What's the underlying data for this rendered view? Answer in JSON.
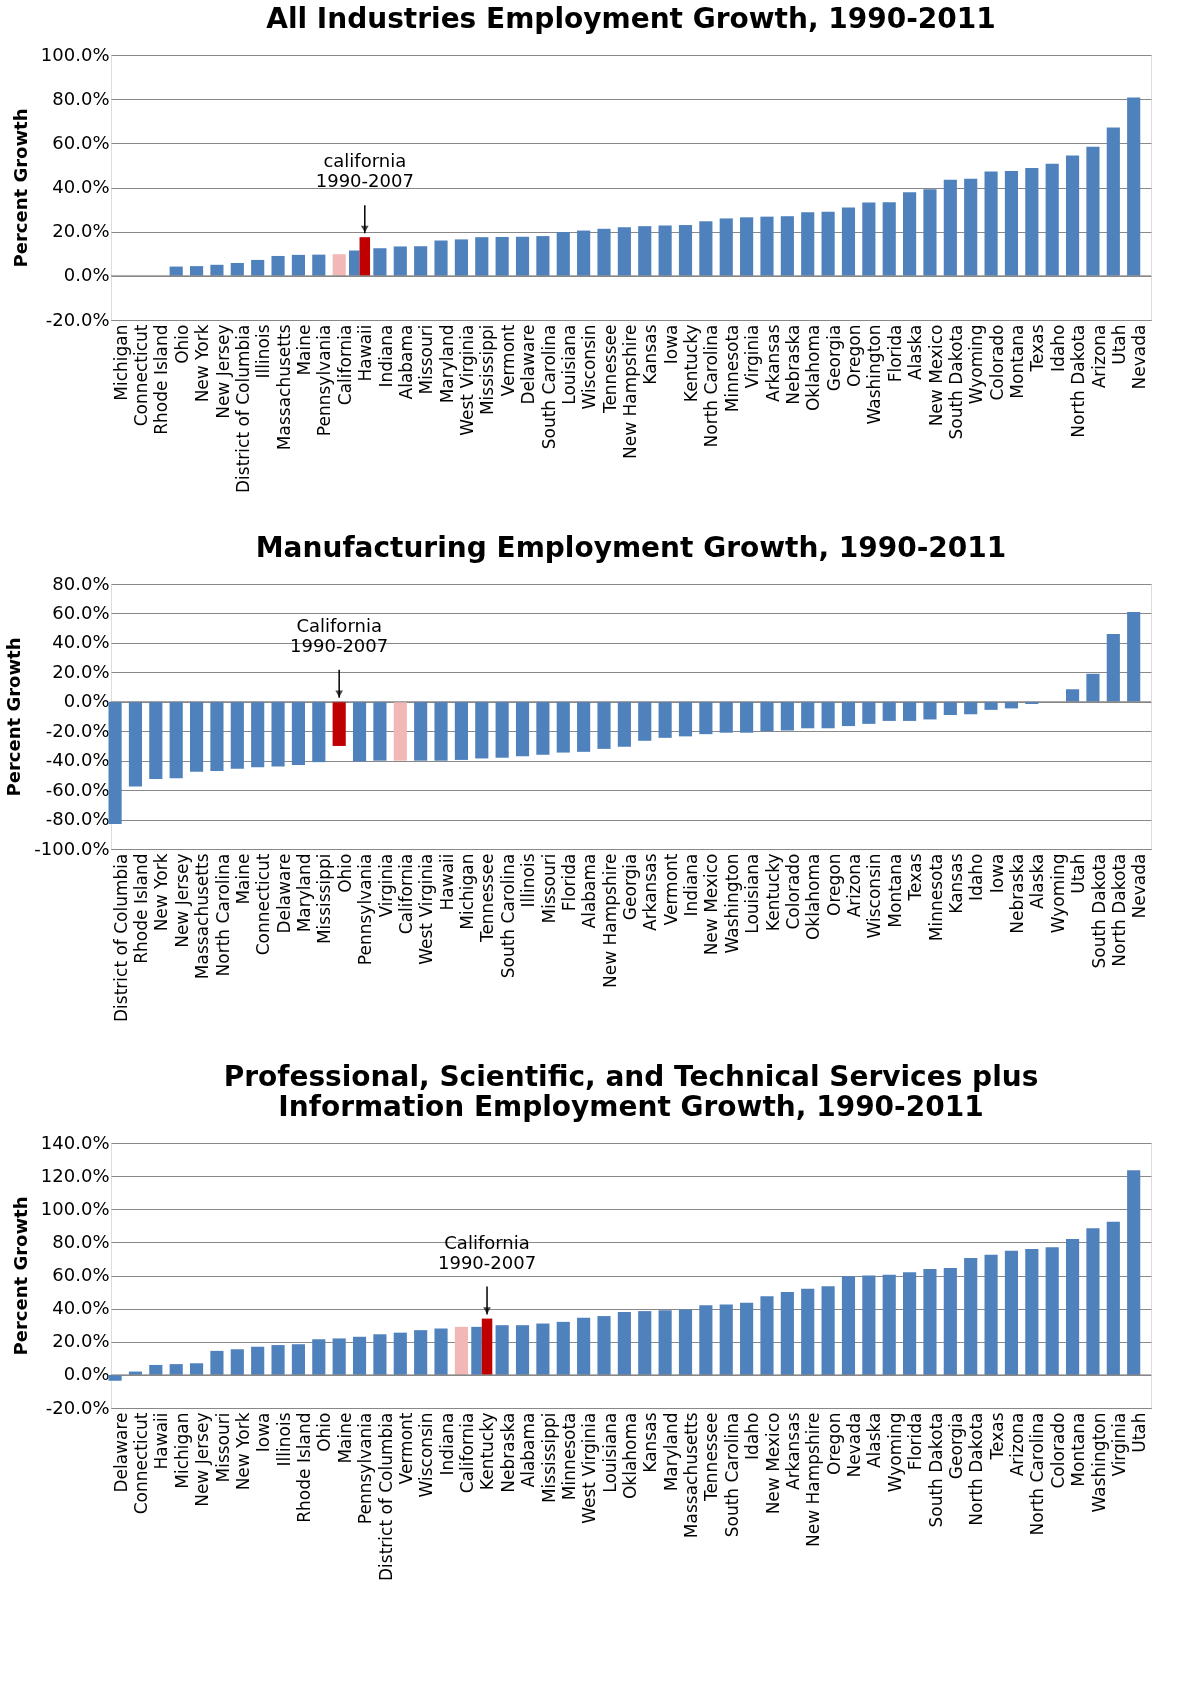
{
  "chart_data": [
    {
      "type": "bar",
      "title": "All Industries Employment Growth, 1990-2011",
      "ylabel": "Percent Growth",
      "categories": [
        "Michigan",
        "Connecticut",
        "Rhode Island",
        "Ohio",
        "New York",
        "New Jersey",
        "District of Columbia",
        "Illinois",
        "Massachusetts",
        "Maine",
        "Pennsylvania",
        "California",
        "Hawaii",
        "Indiana",
        "Alabama",
        "Missouri",
        "Maryland",
        "West Virginia",
        "Mississippi",
        "Vermont",
        "Delaware",
        "South Carolina",
        "Louisiana",
        "Wisconsin",
        "Tennessee",
        "New Hampshire",
        "Kansas",
        "Iowa",
        "Kentucky",
        "North Carolina",
        "Minnesota",
        "Virginia",
        "Arkansas",
        "Nebraska",
        "Oklahoma",
        "Georgia",
        "Oregon",
        "Washington",
        "Florida",
        "Alaska",
        "New Mexico",
        "South Dakota",
        "Wyoming",
        "Colorado",
        "Montana",
        "Texas",
        "Idaho",
        "North Dakota",
        "Arizona",
        "Utah",
        "Nevada"
      ],
      "series": [
        {
          "values": [
            0,
            0,
            0,
            4.2,
            4.4,
            5,
            5.8,
            7.2,
            9,
            9.5,
            9.6,
            9.8,
            11.5,
            12.5,
            13.3,
            13.4,
            16,
            16.5,
            17.5,
            17.6,
            17.7,
            18,
            19.8,
            20.5,
            21.3,
            22,
            22.5,
            22.8,
            23,
            24.7,
            26,
            26.5,
            26.8,
            27,
            28.8,
            29,
            31,
            33.2,
            33.3,
            37.8,
            39.2,
            43.5,
            44,
            47.2,
            47.5,
            48.8,
            50.8,
            54.5,
            58.5,
            67.2,
            80.8
          ],
          "colors": [
            "#4f81bd",
            "#4f81bd",
            "#4f81bd",
            "#4f81bd",
            "#4f81bd",
            "#4f81bd",
            "#4f81bd",
            "#4f81bd",
            "#4f81bd",
            "#4f81bd",
            "#4f81bd",
            "#f2b8b8",
            "#4f81bd",
            "#4f81bd",
            "#4f81bd",
            "#4f81bd",
            "#4f81bd",
            "#4f81bd",
            "#4f81bd",
            "#4f81bd",
            "#4f81bd",
            "#4f81bd",
            "#4f81bd",
            "#4f81bd",
            "#4f81bd",
            "#4f81bd",
            "#4f81bd",
            "#4f81bd",
            "#4f81bd",
            "#4f81bd",
            "#4f81bd",
            "#4f81bd",
            "#4f81bd",
            "#4f81bd",
            "#4f81bd",
            "#4f81bd",
            "#4f81bd",
            "#4f81bd",
            "#4f81bd",
            "#4f81bd",
            "#4f81bd",
            "#4f81bd",
            "#4f81bd",
            "#4f81bd",
            "#4f81bd",
            "#4f81bd",
            "#4f81bd",
            "#4f81bd",
            "#4f81bd",
            "#4f81bd",
            "#4f81bd"
          ]
        },
        {
          "color": "#c00000",
          "values": [
            null,
            null,
            null,
            null,
            null,
            null,
            null,
            null,
            null,
            null,
            null,
            null,
            17.5,
            null,
            null,
            null,
            null,
            null,
            null,
            null,
            null,
            null,
            null,
            null,
            null,
            null,
            null,
            null,
            null,
            null,
            null,
            null,
            null,
            null,
            null,
            null,
            null,
            null,
            null,
            null,
            null,
            null,
            null,
            null,
            null,
            null,
            null,
            null,
            null,
            null,
            null
          ]
        }
      ],
      "ylim": [
        -20,
        100
      ],
      "yticks": [
        {
          "value": -20,
          "label": "-20.0%"
        },
        {
          "value": 0,
          "label": "0.0%"
        },
        {
          "value": 20,
          "label": "20.0%"
        },
        {
          "value": 40,
          "label": "40.0%"
        },
        {
          "value": 60,
          "label": "60.0%"
        },
        {
          "value": 80,
          "label": "80.0%"
        },
        {
          "value": 100,
          "label": "100.0%"
        }
      ],
      "grid": "y",
      "annotations": [
        {
          "text": "california 1990-2007",
          "x": "Hawaii",
          "y": 17.5
        }
      ]
    },
    {
      "type": "bar",
      "title": "Manufacturing Employment Growth, 1990-2011",
      "ylabel": "Percent Growth",
      "categories": [
        "District of Columbia",
        "Rhode Island",
        "New York",
        "New Jersey",
        "Massachusetts",
        "North Carolina",
        "Maine",
        "Connecticut",
        "Delaware",
        "Maryland",
        "Mississippi",
        "Ohio",
        "Pennsylvania",
        "Virginia",
        "California",
        "West Virginia",
        "Hawaii",
        "Michigan",
        "Tennessee",
        "South Carolina",
        "Illinois",
        "Missouri",
        "Florida",
        "Alabama",
        "New Hampshire",
        "Georgia",
        "Arkansas",
        "Vermont",
        "Indiana",
        "New Mexico",
        "Washington",
        "Louisiana",
        "Kentucky",
        "Colorado",
        "Oklahoma",
        "Oregon",
        "Arizona",
        "Wisconsin",
        "Montana",
        "Texas",
        "Minnesota",
        "Kansas",
        "Idaho",
        "Iowa",
        "Nebraska",
        "Alaska",
        "Wyoming",
        "Utah",
        "South Dakota",
        "North Dakota",
        "Nevada"
      ],
      "series": [
        {
          "values": [
            -83,
            -57.5,
            -52.5,
            -52,
            -47.5,
            -47,
            -45.5,
            -44.5,
            -44,
            -43,
            -41,
            null,
            -40.5,
            -40,
            -40,
            -40,
            -40,
            -39.5,
            -38.5,
            -38,
            -37,
            -36,
            -34.5,
            -34,
            -32,
            -30.5,
            -26.5,
            -24.5,
            -23.5,
            -22,
            -21,
            -21,
            -20,
            -19.5,
            -18,
            -18,
            -16.5,
            -15,
            -13,
            -13,
            -12,
            -9,
            -8.5,
            -5.5,
            -4.5,
            -1.5,
            0,
            8.5,
            19,
            46,
            61
          ],
          "colors": [
            "#4f81bd",
            "#4f81bd",
            "#4f81bd",
            "#4f81bd",
            "#4f81bd",
            "#4f81bd",
            "#4f81bd",
            "#4f81bd",
            "#4f81bd",
            "#4f81bd",
            "#4f81bd",
            "#4f81bd",
            "#4f81bd",
            "#4f81bd",
            "#f2b8b8",
            "#4f81bd",
            "#4f81bd",
            "#4f81bd",
            "#4f81bd",
            "#4f81bd",
            "#4f81bd",
            "#4f81bd",
            "#4f81bd",
            "#4f81bd",
            "#4f81bd",
            "#4f81bd",
            "#4f81bd",
            "#4f81bd",
            "#4f81bd",
            "#4f81bd",
            "#4f81bd",
            "#4f81bd",
            "#4f81bd",
            "#4f81bd",
            "#4f81bd",
            "#4f81bd",
            "#4f81bd",
            "#4f81bd",
            "#4f81bd",
            "#4f81bd",
            "#4f81bd",
            "#4f81bd",
            "#4f81bd",
            "#4f81bd",
            "#4f81bd",
            "#4f81bd",
            "#4f81bd",
            "#4f81bd",
            "#4f81bd",
            "#4f81bd",
            "#4f81bd"
          ]
        },
        {
          "color": "#c00000",
          "values": [
            null,
            null,
            null,
            null,
            null,
            null,
            null,
            null,
            null,
            null,
            null,
            -30,
            null,
            null,
            null,
            null,
            null,
            null,
            null,
            null,
            null,
            null,
            null,
            null,
            null,
            null,
            null,
            null,
            null,
            null,
            null,
            null,
            null,
            null,
            null,
            null,
            null,
            null,
            null,
            null,
            null,
            null,
            null,
            null,
            null,
            null,
            null,
            null,
            null,
            null,
            null
          ]
        }
      ],
      "ylim": [
        -100,
        80
      ],
      "yticks": [
        {
          "value": -100,
          "label": "-100.0%"
        },
        {
          "value": -80,
          "label": "-80.0%"
        },
        {
          "value": -60,
          "label": "-60.0%"
        },
        {
          "value": -40,
          "label": "-40.0%"
        },
        {
          "value": -20,
          "label": "-20.0%"
        },
        {
          "value": 0,
          "label": "0.0%"
        },
        {
          "value": 20,
          "label": "20.0%"
        },
        {
          "value": 40,
          "label": "40.0%"
        },
        {
          "value": 60,
          "label": "60.0%"
        },
        {
          "value": 80,
          "label": "80.0%"
        }
      ],
      "grid": "y",
      "annotations": [
        {
          "text": "California 1990-2007",
          "x": "Ohio",
          "y": 0
        }
      ]
    },
    {
      "type": "bar",
      "title": "Professional, Scientific, and Technical Services plus Information Employment Growth, 1990-2011",
      "ylabel": "Percent Growth",
      "categories": [
        "Delaware",
        "Connecticut",
        "Hawaii",
        "Michigan",
        "New Jersey",
        "Missouri",
        "New York",
        "Iowa",
        "Illinois",
        "Rhode Island",
        "Ohio",
        "Maine",
        "Pennsylvania",
        "District of Columbia",
        "Vermont",
        "Wisconsin",
        "Indiana",
        "California",
        "Kentucky",
        "Nebraska",
        "Alabama",
        "Mississippi",
        "Minnesota",
        "West Virginia",
        "Louisiana",
        "Oklahoma",
        "Kansas",
        "Maryland",
        "Massachusetts",
        "Tennessee",
        "South Carolina",
        "Idaho",
        "New Mexico",
        "Arkansas",
        "New Hampshire",
        "Oregon",
        "Nevada",
        "Alaska",
        "Wyoming",
        "Florida",
        "South Dakota",
        "Georgia",
        "North Dakota",
        "Texas",
        "Arizona",
        "North Carolina",
        "Colorado",
        "Montana",
        "Washington",
        "Virginia",
        "Utah"
      ],
      "series": [
        {
          "values": [
            -3.5,
            2,
            6,
            6.5,
            7,
            14.5,
            15.5,
            17,
            18,
            18.5,
            21.5,
            22,
            23,
            24.5,
            25.5,
            27,
            28,
            29,
            29,
            30,
            30,
            31,
            32,
            34.5,
            35.5,
            38,
            38.5,
            39,
            39.5,
            42,
            42.5,
            43.5,
            47.5,
            50,
            52,
            53.5,
            59.5,
            60,
            60.5,
            62,
            64,
            64.5,
            70.5,
            72.5,
            75,
            76,
            77,
            82,
            88.5,
            92.5,
            123.5
          ],
          "colors": [
            "#4f81bd",
            "#4f81bd",
            "#4f81bd",
            "#4f81bd",
            "#4f81bd",
            "#4f81bd",
            "#4f81bd",
            "#4f81bd",
            "#4f81bd",
            "#4f81bd",
            "#4f81bd",
            "#4f81bd",
            "#4f81bd",
            "#4f81bd",
            "#4f81bd",
            "#4f81bd",
            "#4f81bd",
            "#f2b8b8",
            "#4f81bd",
            "#4f81bd",
            "#4f81bd",
            "#4f81bd",
            "#4f81bd",
            "#4f81bd",
            "#4f81bd",
            "#4f81bd",
            "#4f81bd",
            "#4f81bd",
            "#4f81bd",
            "#4f81bd",
            "#4f81bd",
            "#4f81bd",
            "#4f81bd",
            "#4f81bd",
            "#4f81bd",
            "#4f81bd",
            "#4f81bd",
            "#4f81bd",
            "#4f81bd",
            "#4f81bd",
            "#4f81bd",
            "#4f81bd",
            "#4f81bd",
            "#4f81bd",
            "#4f81bd",
            "#4f81bd",
            "#4f81bd",
            "#4f81bd",
            "#4f81bd",
            "#4f81bd",
            "#4f81bd"
          ]
        },
        {
          "color": "#c00000",
          "values": [
            null,
            null,
            null,
            null,
            null,
            null,
            null,
            null,
            null,
            null,
            null,
            null,
            null,
            null,
            null,
            null,
            null,
            null,
            34,
            null,
            null,
            null,
            null,
            null,
            null,
            null,
            null,
            null,
            null,
            null,
            null,
            null,
            null,
            null,
            null,
            null,
            null,
            null,
            null,
            null,
            null,
            null,
            null,
            null,
            null,
            null,
            null,
            null,
            null,
            null,
            null
          ]
        }
      ],
      "ylim": [
        -20,
        140
      ],
      "yticks": [
        {
          "value": -20,
          "label": "-20.0%"
        },
        {
          "value": 0,
          "label": "0.0%"
        },
        {
          "value": 20,
          "label": "20.0%"
        },
        {
          "value": 40,
          "label": "40.0%"
        },
        {
          "value": 60,
          "label": "60.0%"
        },
        {
          "value": 80,
          "label": "80.0%"
        },
        {
          "value": 100,
          "label": "100.0%"
        },
        {
          "value": 120,
          "label": "120.0%"
        },
        {
          "value": 140,
          "label": "140.0%"
        }
      ],
      "grid": "y",
      "annotations": [
        {
          "text": "California 1990-2007",
          "x": "Kentucky",
          "y": 34
        }
      ]
    }
  ]
}
